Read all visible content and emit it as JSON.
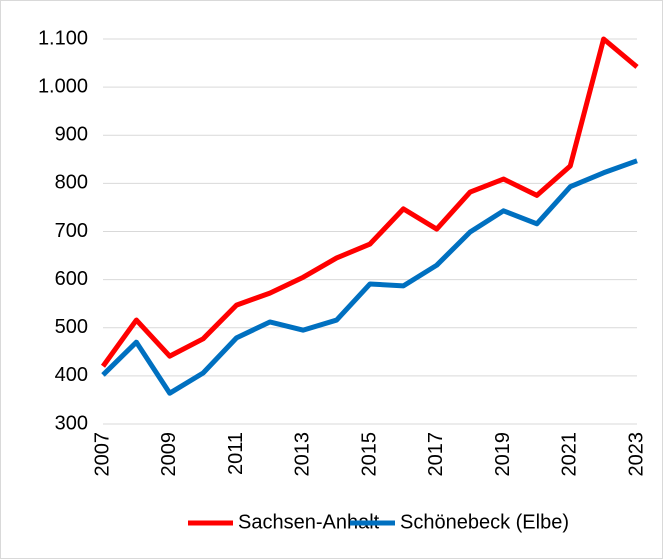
{
  "chart_data": {
    "type": "line",
    "x": [
      2007,
      2008,
      2009,
      2010,
      2011,
      2012,
      2013,
      2014,
      2015,
      2016,
      2017,
      2018,
      2019,
      2020,
      2021,
      2022,
      2023
    ],
    "series": [
      {
        "name": "Sachsen-Anhalt",
        "color": "#ff0000",
        "values": [
          420,
          516,
          441,
          477,
          547,
          572,
          605,
          645,
          674,
          747,
          705,
          782,
          809,
          775,
          836,
          1100,
          1042
        ]
      },
      {
        "name": "Schönebeck (Elbe)",
        "color": "#0070c0",
        "values": [
          402,
          470,
          364,
          406,
          479,
          512,
          495,
          516,
          591,
          587,
          630,
          699,
          743,
          716,
          793,
          822,
          847
        ]
      }
    ],
    "xlim": [
      2007,
      2023
    ],
    "xticks": [
      2007,
      2009,
      2011,
      2013,
      2015,
      2017,
      2019,
      2021,
      2023
    ],
    "ylim": [
      300,
      1100
    ],
    "yticks": [
      300,
      400,
      500,
      600,
      700,
      800,
      900,
      {
        "value": 1000,
        "label": "1.000"
      },
      {
        "value": 1100,
        "label": "1.100"
      }
    ],
    "grid": true,
    "legend": "bottom"
  }
}
